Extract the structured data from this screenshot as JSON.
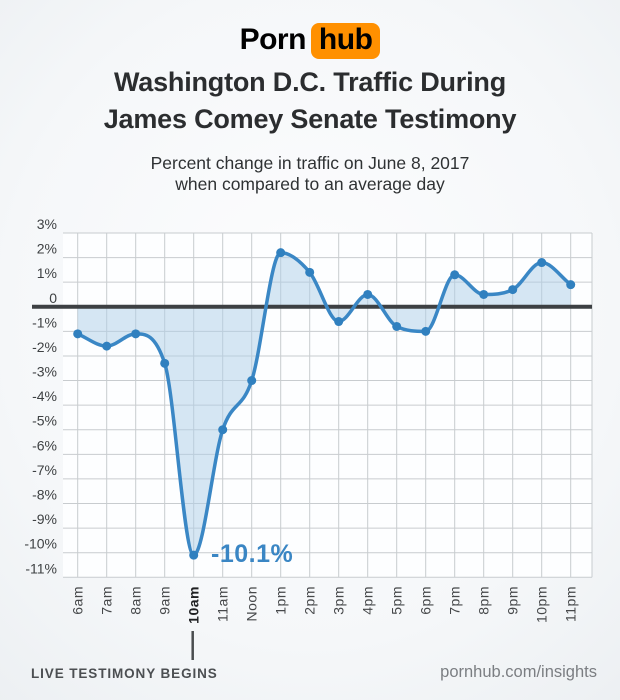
{
  "brand": {
    "logo_part1": "Porn",
    "logo_part2": "hub",
    "logo_badge_color": "#ff9000"
  },
  "header": {
    "title_line1": "Washington D.C. Traffic During",
    "title_line2": "James Comey Senate Testimony",
    "subtitle_line1": "Percent change in traffic on June 8, 2017",
    "subtitle_line2": "when compared to an average day"
  },
  "chart_data": {
    "type": "line",
    "title": "Washington D.C. Traffic During James Comey Senate Testimony",
    "subtitle": "Percent change in traffic on June 8, 2017 when compared to an average day",
    "categories": [
      "6am",
      "7am",
      "8am",
      "9am",
      "10am",
      "11am",
      "Noon",
      "1pm",
      "2pm",
      "3pm",
      "4pm",
      "5pm",
      "6pm",
      "7pm",
      "8pm",
      "9pm",
      "10pm",
      "11pm"
    ],
    "values": [
      -1.1,
      -1.6,
      -1.1,
      -2.3,
      -10.1,
      -5.0,
      -3.0,
      2.2,
      1.4,
      -0.6,
      0.5,
      -0.8,
      -1.0,
      1.3,
      0.5,
      0.7,
      1.8,
      0.9
    ],
    "xlabel": "",
    "ylabel": "Percent change in traffic",
    "ylim": [
      -11,
      3
    ],
    "y_tick_step": 1,
    "y_axis_labels": [
      "3%",
      "2%",
      "1%",
      "0",
      "-1%",
      "-2%",
      "-3%",
      "-4%",
      "-5%",
      "-6%",
      "-7%",
      "-8%",
      "-9%",
      "-10%",
      "-11%"
    ],
    "grid": true,
    "legend": "none",
    "baseline": 0,
    "bold_category": "10am",
    "line_color": "#3a87c5",
    "dot_color": "#3080bf",
    "fill_color": "#aecde8",
    "grid_color": "#c8cccf",
    "zero_line_color": "#3d4043",
    "axis_label_color": "#3e4143",
    "annotations": [
      {
        "text": "-10.1%",
        "category": "10am",
        "value": -10.1
      },
      {
        "text": "LIVE TESTIMONY BEGINS",
        "category": "10am"
      }
    ]
  },
  "annotation": {
    "min_value_label": "-10.1%",
    "live_testimony_label": "LIVE TESTIMONY BEGINS"
  },
  "footer": {
    "site": "pornhub.com/insights"
  }
}
